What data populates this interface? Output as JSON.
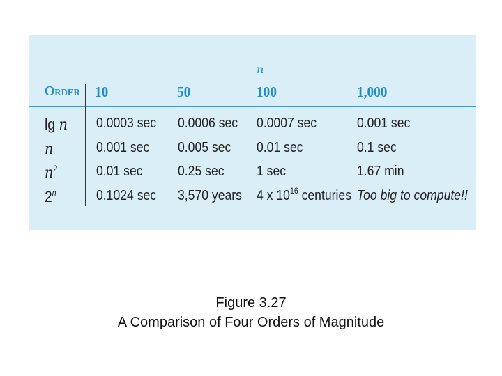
{
  "table": {
    "n_label": "n",
    "header": [
      "Order",
      "10",
      "50",
      "100",
      "1,000"
    ],
    "rows": [
      {
        "function": {
          "base": "lg",
          "var": "n",
          "sup": ""
        },
        "values": [
          "0.0003 sec",
          "0.0006 sec",
          "0.0007 sec",
          "0.001 sec"
        ]
      },
      {
        "function": {
          "base": "",
          "var": "n",
          "sup": ""
        },
        "values": [
          "0.001 sec",
          "0.005 sec",
          "0.01 sec",
          "0.1 sec"
        ]
      },
      {
        "function": {
          "base": "",
          "var": "n",
          "sup": "2"
        },
        "values": [
          "0.01 sec",
          "0.25 sec",
          "1 sec",
          "1.67 min"
        ]
      },
      {
        "function": {
          "base": "2",
          "var": "",
          "sup": "n"
        },
        "values": [
          "0.1024 sec",
          "3,570 years",
          {
            "base": "4 x 10",
            "sup": "16",
            "rest": " centuries"
          },
          "Too big to compute!!"
        ]
      }
    ]
  },
  "caption": {
    "line1": "Figure 3.27",
    "line2": "A Comparison of Four Orders of Magnitude"
  },
  "colors": {
    "panel_bg": "#daeef8",
    "header_text": "#1f8fc4",
    "rule": "#2aa3d6"
  }
}
